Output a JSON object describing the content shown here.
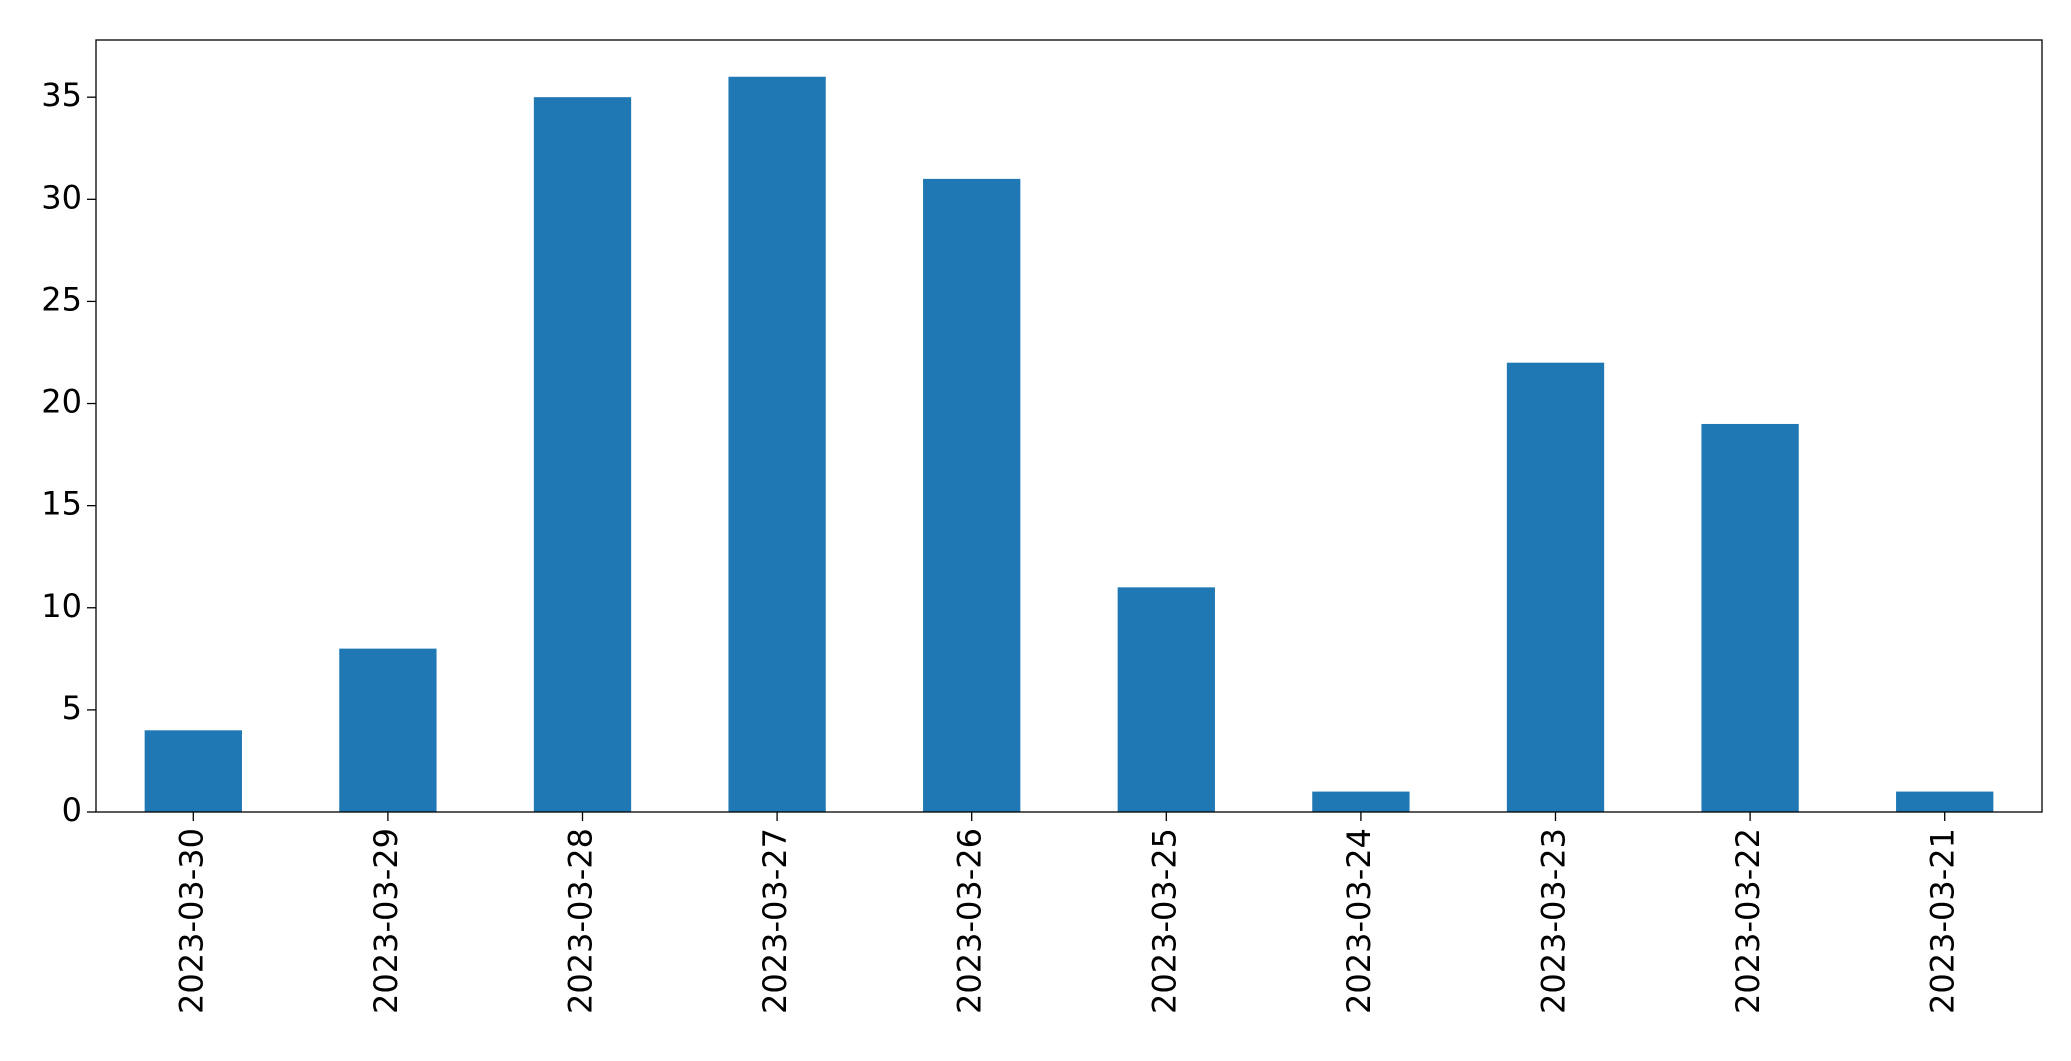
{
  "chart_data": {
    "type": "bar",
    "categories": [
      "2023-03-30",
      "2023-03-29",
      "2023-03-28",
      "2023-03-27",
      "2023-03-26",
      "2023-03-25",
      "2023-03-24",
      "2023-03-23",
      "2023-03-22",
      "2023-03-21"
    ],
    "values": [
      4,
      8,
      35,
      36,
      31,
      11,
      1,
      22,
      19,
      1
    ],
    "color": "#1f77b4",
    "ylim": [
      0,
      37.8
    ],
    "yticks": [
      0,
      5,
      10,
      15,
      20,
      25,
      30,
      35
    ],
    "grid": false
  }
}
